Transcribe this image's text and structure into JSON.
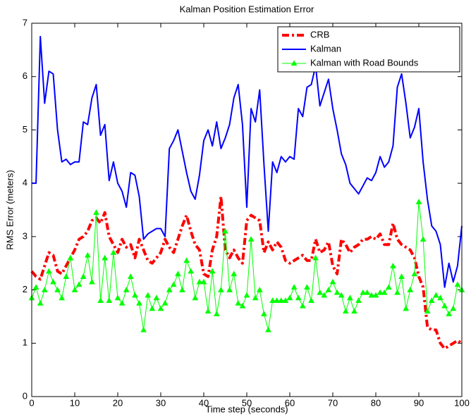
{
  "chart_data": {
    "type": "line",
    "title": "Kalman Position Estimation Error",
    "xlabel": "Time step (seconds)",
    "ylabel": "RMS Error (meters)",
    "xlim": [
      0,
      100
    ],
    "ylim": [
      0,
      7
    ],
    "xticks": [
      0,
      10,
      20,
      30,
      40,
      50,
      60,
      70,
      80,
      90,
      100
    ],
    "yticks": [
      0,
      1,
      2,
      3,
      4,
      5,
      6,
      7
    ],
    "legend": "top-right",
    "x": [
      0,
      1,
      2,
      3,
      4,
      5,
      6,
      7,
      8,
      9,
      10,
      11,
      12,
      13,
      14,
      15,
      16,
      17,
      18,
      19,
      20,
      21,
      22,
      23,
      24,
      25,
      26,
      27,
      28,
      29,
      30,
      31,
      32,
      33,
      34,
      35,
      36,
      37,
      38,
      39,
      40,
      41,
      42,
      43,
      44,
      45,
      46,
      47,
      48,
      49,
      50,
      51,
      52,
      53,
      54,
      55,
      56,
      57,
      58,
      59,
      60,
      61,
      62,
      63,
      64,
      65,
      66,
      67,
      68,
      69,
      70,
      71,
      72,
      73,
      74,
      75,
      76,
      77,
      78,
      79,
      80,
      81,
      82,
      83,
      84,
      85,
      86,
      87,
      88,
      89,
      90,
      91,
      92,
      93,
      94,
      95,
      96,
      97,
      98,
      99,
      100
    ],
    "series": [
      {
        "name": "CRB",
        "color": "#ff0000",
        "dash": "dashdot",
        "values": [
          2.35,
          2.25,
          2.2,
          2.45,
          2.7,
          2.65,
          2.35,
          2.3,
          2.45,
          2.6,
          2.75,
          2.95,
          3.0,
          3.1,
          3.3,
          3.35,
          3.25,
          3.45,
          3.0,
          2.85,
          2.7,
          2.95,
          2.8,
          2.85,
          2.6,
          2.95,
          2.75,
          2.55,
          2.5,
          2.6,
          2.7,
          2.95,
          2.8,
          2.7,
          2.95,
          3.2,
          3.4,
          3.1,
          2.85,
          2.75,
          2.3,
          2.25,
          2.75,
          3.0,
          3.75,
          2.75,
          2.6,
          2.75,
          2.6,
          2.5,
          3.3,
          3.4,
          3.35,
          3.3,
          2.7,
          2.9,
          2.75,
          2.9,
          2.8,
          2.55,
          2.5,
          2.55,
          2.6,
          2.65,
          2.55,
          2.55,
          2.95,
          2.7,
          2.75,
          2.9,
          2.45,
          2.3,
          2.95,
          2.85,
          2.7,
          2.8,
          2.85,
          2.95,
          2.95,
          3.0,
          2.95,
          3.05,
          2.85,
          2.85,
          3.25,
          2.95,
          2.85,
          2.8,
          2.75,
          2.6,
          2.25,
          2.05,
          1.3,
          1.25,
          1.25,
          1.0,
          0.9,
          0.95,
          1.0,
          1.05,
          1.0
        ]
      },
      {
        "name": "Kalman",
        "color": "#0000ff",
        "values": [
          4.0,
          4.0,
          6.75,
          5.5,
          6.1,
          6.05,
          5.0,
          4.4,
          4.45,
          4.35,
          4.4,
          4.4,
          5.15,
          5.1,
          5.6,
          5.85,
          4.9,
          5.1,
          4.05,
          4.4,
          4.0,
          3.85,
          3.55,
          4.2,
          4.15,
          3.75,
          2.95,
          3.05,
          3.1,
          3.15,
          3.15,
          3.0,
          4.65,
          4.8,
          5.0,
          4.6,
          4.2,
          3.85,
          3.7,
          4.15,
          4.8,
          5.0,
          4.7,
          5.15,
          4.65,
          4.85,
          5.1,
          5.6,
          5.85,
          5.1,
          3.55,
          5.4,
          5.15,
          5.75,
          4.35,
          3.1,
          4.4,
          4.2,
          4.5,
          4.4,
          4.5,
          4.45,
          5.4,
          5.25,
          5.8,
          5.85,
          6.2,
          5.45,
          5.7,
          5.95,
          5.4,
          5.0,
          4.55,
          4.35,
          4.0,
          3.9,
          3.8,
          3.95,
          4.1,
          4.05,
          4.2,
          4.5,
          4.3,
          4.4,
          4.7,
          5.8,
          6.05,
          5.5,
          4.85,
          5.05,
          5.4,
          4.4,
          3.7,
          3.2,
          3.1,
          2.85,
          2.05,
          2.5,
          2.15,
          2.45,
          3.2
        ]
      },
      {
        "name": "Kalman with Road Bounds",
        "color": "#00ff00",
        "marker": "triangle",
        "values": [
          1.85,
          2.05,
          1.75,
          2.0,
          2.35,
          2.15,
          2.0,
          1.85,
          2.25,
          2.6,
          2.0,
          2.1,
          2.25,
          2.65,
          2.15,
          3.45,
          1.8,
          2.6,
          1.8,
          2.7,
          1.85,
          1.75,
          2.0,
          2.25,
          1.9,
          1.75,
          1.25,
          1.9,
          1.65,
          1.85,
          1.65,
          1.75,
          2.0,
          2.1,
          2.3,
          2.0,
          2.55,
          2.35,
          1.85,
          2.15,
          2.15,
          1.6,
          2.35,
          1.55,
          2.0,
          3.1,
          2.0,
          2.3,
          1.75,
          1.7,
          1.9,
          2.95,
          1.85,
          2.0,
          1.55,
          1.25,
          1.8,
          1.8,
          1.8,
          1.8,
          1.85,
          2.05,
          1.85,
          1.7,
          2.05,
          1.8,
          2.6,
          1.95,
          1.9,
          2.0,
          2.15,
          1.95,
          1.9,
          1.6,
          1.85,
          1.6,
          1.8,
          1.95,
          1.95,
          1.9,
          1.9,
          1.95,
          1.95,
          2.05,
          2.45,
          1.95,
          2.25,
          1.65,
          2.0,
          2.3,
          3.65,
          2.95,
          1.6,
          1.8,
          1.9,
          1.85,
          1.7,
          1.55,
          1.65,
          2.1,
          2.0
        ]
      }
    ]
  }
}
